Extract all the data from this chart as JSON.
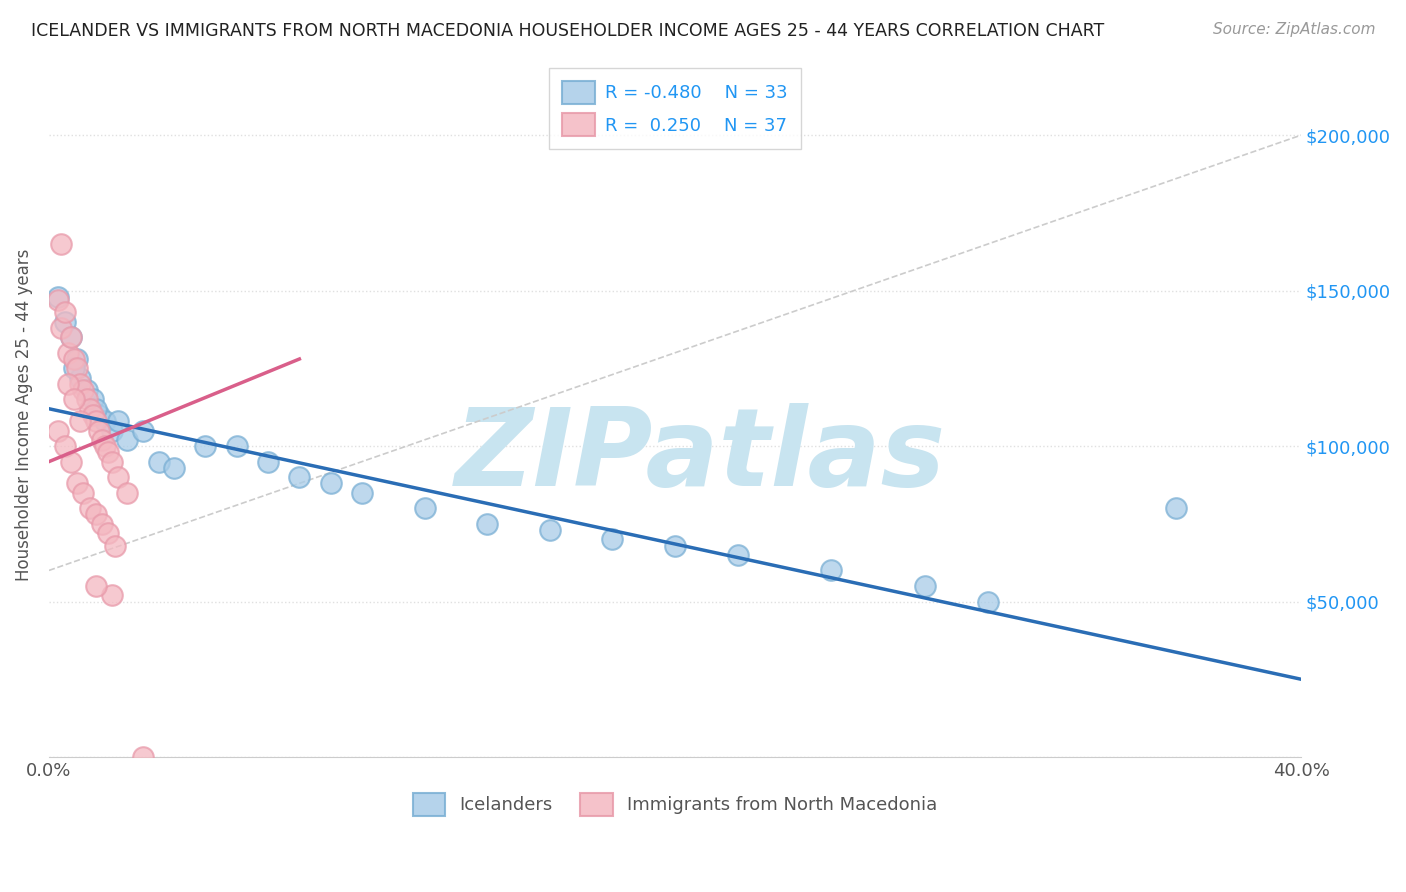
{
  "title": "ICELANDER VS IMMIGRANTS FROM NORTH MACEDONIA HOUSEHOLDER INCOME AGES 25 - 44 YEARS CORRELATION CHART",
  "source_text": "Source: ZipAtlas.com",
  "ylabel": "Householder Income Ages 25 - 44 years",
  "xlim": [
    0.0,
    0.4
  ],
  "ylim": [
    0,
    220000
  ],
  "xticks": [
    0.0,
    0.05,
    0.1,
    0.15,
    0.2,
    0.25,
    0.3,
    0.35,
    0.4
  ],
  "ytick_values": [
    0,
    50000,
    100000,
    150000,
    200000
  ],
  "legend_R_blue": "-0.480",
  "legend_N_blue": "33",
  "legend_R_pink": "0.250",
  "legend_N_pink": "37",
  "blue_color": "#a8cce8",
  "pink_color": "#f4b8c1",
  "blue_edge_color": "#7aafd4",
  "pink_edge_color": "#e89aaa",
  "blue_line_color": "#2a6db5",
  "pink_line_color": "#d95f8a",
  "ref_line_color": "#cccccc",
  "watermark": "ZIPatlas",
  "watermark_color": "#c8e4f0",
  "blue_scatter_x": [
    0.003,
    0.005,
    0.007,
    0.009,
    0.01,
    0.012,
    0.014,
    0.016,
    0.018,
    0.02,
    0.008,
    0.015,
    0.022,
    0.025,
    0.03,
    0.035,
    0.04,
    0.05,
    0.06,
    0.07,
    0.08,
    0.09,
    0.1,
    0.12,
    0.14,
    0.16,
    0.18,
    0.2,
    0.22,
    0.25,
    0.28,
    0.36,
    0.3
  ],
  "blue_scatter_y": [
    148000,
    140000,
    135000,
    128000,
    122000,
    118000,
    115000,
    110000,
    108000,
    105000,
    125000,
    112000,
    108000,
    102000,
    105000,
    95000,
    93000,
    100000,
    100000,
    95000,
    90000,
    88000,
    85000,
    80000,
    75000,
    73000,
    70000,
    68000,
    65000,
    60000,
    55000,
    80000,
    50000
  ],
  "pink_scatter_x": [
    0.003,
    0.004,
    0.005,
    0.006,
    0.007,
    0.008,
    0.009,
    0.01,
    0.011,
    0.012,
    0.013,
    0.014,
    0.015,
    0.016,
    0.017,
    0.018,
    0.019,
    0.02,
    0.022,
    0.025,
    0.003,
    0.005,
    0.007,
    0.009,
    0.011,
    0.013,
    0.015,
    0.017,
    0.019,
    0.021,
    0.004,
    0.006,
    0.008,
    0.01,
    0.02,
    0.015,
    0.03
  ],
  "pink_scatter_y": [
    147000,
    138000,
    143000,
    130000,
    135000,
    128000,
    125000,
    120000,
    118000,
    115000,
    112000,
    110000,
    108000,
    105000,
    102000,
    100000,
    98000,
    95000,
    90000,
    85000,
    105000,
    100000,
    95000,
    88000,
    85000,
    80000,
    78000,
    75000,
    72000,
    68000,
    165000,
    120000,
    115000,
    108000,
    52000,
    55000,
    0
  ],
  "blue_line_x0": 0.0,
  "blue_line_y0": 112000,
  "blue_line_x1": 0.4,
  "blue_line_y1": 25000,
  "pink_line_x0": 0.0,
  "pink_line_y0": 95000,
  "pink_line_x1": 0.08,
  "pink_line_y1": 128000,
  "ref_line_x0": 0.0,
  "ref_line_y0": 60000,
  "ref_line_x1": 0.4,
  "ref_line_y1": 200000,
  "background_color": "#ffffff",
  "grid_color": "#e0e0e0"
}
